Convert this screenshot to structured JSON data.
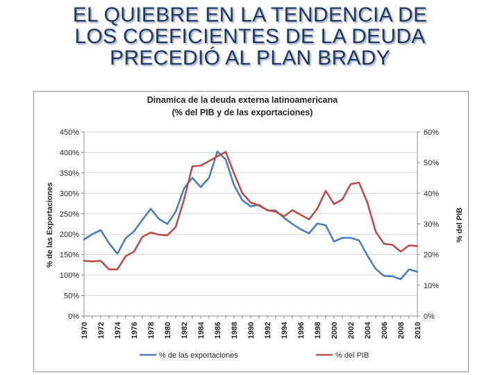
{
  "slide": {
    "title_lines": [
      "EL QUIEBRE EN LA TENDENCIA DE",
      "LOS COEFICIENTES DE LA DEUDA",
      "PRECEDIÓ AL PLAN BRADY"
    ]
  },
  "chart_data": {
    "type": "line",
    "title": "Dinamica de la deuda externa latinoamericana",
    "subtitle": "(% del PIB y de las exportaciones)",
    "ylabel": "% de las Exportaciones",
    "y2label": "% del PIB",
    "ylim": [
      0,
      450
    ],
    "y2lim": [
      0,
      60
    ],
    "yticks": [
      "0%",
      "50%",
      "100%",
      "150%",
      "200%",
      "250%",
      "300%",
      "350%",
      "400%",
      "450%"
    ],
    "y2ticks": [
      "0%",
      "10%",
      "20%",
      "30%",
      "40%",
      "50%",
      "60%"
    ],
    "xticks": [
      "1970",
      "1972",
      "1974",
      "1976",
      "1978",
      "1980",
      "1982",
      "1984",
      "1986",
      "1988",
      "1990",
      "1992",
      "1994",
      "1996",
      "1998",
      "2000",
      "2002",
      "2004",
      "2006",
      "2008",
      "2010"
    ],
    "x": [
      1970,
      1971,
      1972,
      1973,
      1974,
      1975,
      1976,
      1977,
      1978,
      1979,
      1980,
      1981,
      1982,
      1983,
      1984,
      1985,
      1986,
      1987,
      1988,
      1989,
      1990,
      1991,
      1992,
      1993,
      1994,
      1995,
      1996,
      1997,
      1998,
      1999,
      2000,
      2001,
      2002,
      2003,
      2004,
      2005,
      2006,
      2007,
      2008,
      2009,
      2010
    ],
    "grid": true,
    "legend": "bottom",
    "series": [
      {
        "name": "% de las exportaciones",
        "axis": "left",
        "color": "#4a7ebb",
        "values": [
          187,
          200,
          210,
          178,
          152,
          190,
          207,
          235,
          262,
          237,
          225,
          255,
          312,
          338,
          315,
          338,
          402,
          383,
          320,
          283,
          268,
          272,
          258,
          258,
          240,
          225,
          212,
          202,
          226,
          222,
          182,
          191,
          191,
          185,
          148,
          115,
          98,
          97,
          90,
          114,
          108
        ]
      },
      {
        "name": "% del PIB",
        "axis": "right",
        "color": "#be4b48",
        "values": [
          18.0,
          17.8,
          18.0,
          15.2,
          15.2,
          19.5,
          21.0,
          25.8,
          27.2,
          26.5,
          26.3,
          29.0,
          38.0,
          48.8,
          49.0,
          50.5,
          52.0,
          53.5,
          46.5,
          40.0,
          37.0,
          36.0,
          34.5,
          34.0,
          32.5,
          34.5,
          33.0,
          31.5,
          35.0,
          40.8,
          36.5,
          38.0,
          43.0,
          43.5,
          37.0,
          27.5,
          23.5,
          23.2,
          21.0,
          23.0,
          22.8
        ]
      }
    ]
  }
}
